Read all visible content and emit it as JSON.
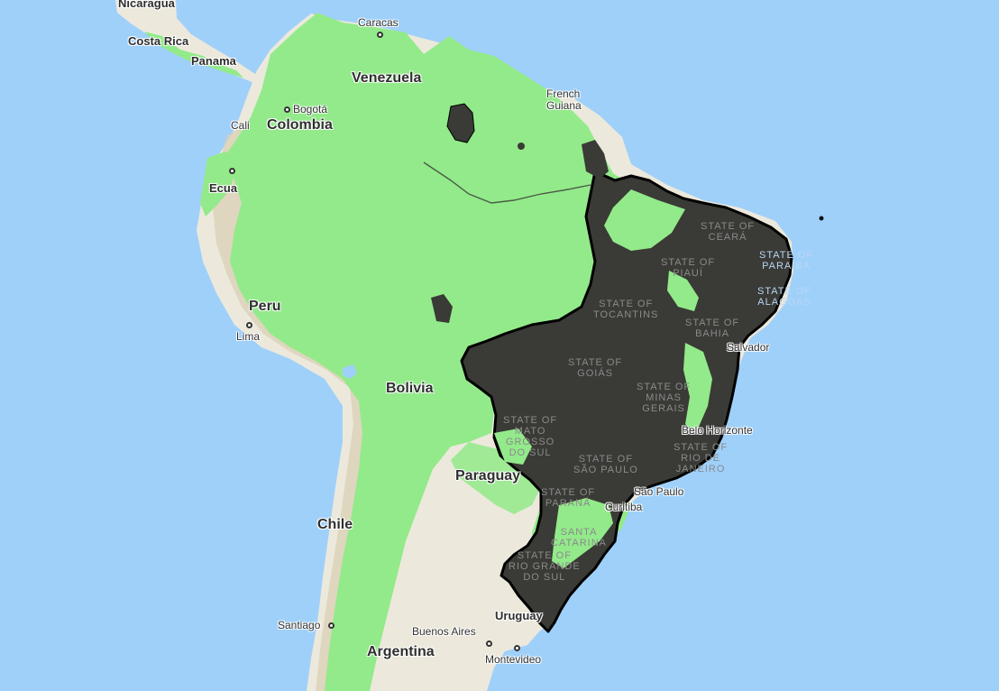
{
  "map": {
    "colors": {
      "ocean": "#9fd0fa",
      "land": "#ece9dc",
      "andes": "#d9cfb4",
      "vegetation": "#93ea8a",
      "selected_region_fill": "#3a3a36",
      "selected_region_outline": "#000000"
    },
    "labels": {
      "countries": {
        "nicaragua": "Nicaragua",
        "costa_rica": "Costa Rica",
        "panama": "Panama",
        "venezuela": "Venezuela",
        "colombia": "Colombia",
        "ecuador": "Ecua",
        "peru": "Peru",
        "bolivia": "Bolivia",
        "paraguay": "Paraguay",
        "chile": "Chile",
        "argentina": "Argentina",
        "uruguay": "Uruguay",
        "french_guiana": "French Guiana"
      },
      "cities": {
        "caracas": "Caracas",
        "bogota": "Bogotá",
        "cali": "Cali",
        "lima": "Lima",
        "santiago": "Santiago",
        "buenos_aires": "Buenos Aires",
        "montevideo": "Montevideo",
        "salvador": "Salvador",
        "belo_horizonte": "Belo Horizonte",
        "sao_paulo": "São Paulo",
        "curitiba": "Curitiba"
      },
      "states": {
        "ceara": "STATE OF\nCEARÁ",
        "piaui": "STATE OF\nPIAUÍ",
        "paraiba": "STATE OF\nPARAÍBA",
        "alagoas": "STATE OF\nALAGOAS",
        "tocantins": "STATE OF\nTOCANTINS",
        "bahia": "STATE OF\nBAHIA",
        "goias": "STATE OF\nGOIÁS",
        "minas_gerais": "STATE OF\nMINAS\nGERAIS",
        "mato_grosso_do_sul": "STATE OF\nMATO\nGROSSO\nDO SUL",
        "sao_paulo": "STATE OF\nSÃO PAULO",
        "rio_de_janeiro": "STATE OF\nRIO DE\nJANEIRO",
        "parana": "STATE OF\nPARANÁ",
        "santa_catarina": "SANTA\nCATARINA",
        "rio_grande_do_sul": "STATE OF\nRIO GRANDE\nDO SUL"
      }
    }
  }
}
